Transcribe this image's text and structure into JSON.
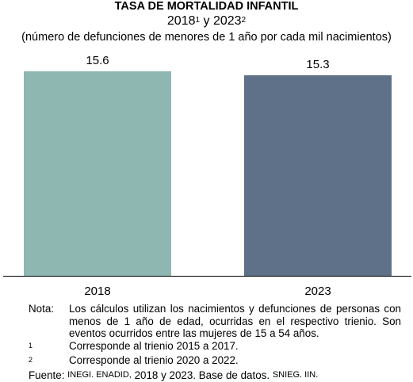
{
  "title": "TASA DE MORTALIDAD INFANTIL",
  "subtitle": {
    "year1": "2018",
    "sup1": "1",
    "connector": "y",
    "year2": "2023",
    "sup2": "2"
  },
  "units": "(número de defunciones de menores de 1 año por cada mil nacimientos)",
  "colors": {
    "bar_2018": "#8db7b0",
    "bar_2023": "#5e7189",
    "baseline": "#000000"
  },
  "chart_data": {
    "type": "bar",
    "categories": [
      "2018",
      "2023"
    ],
    "values": [
      15.6,
      15.3
    ],
    "value_labels": [
      "15.6",
      "15.3"
    ],
    "ylim": [
      0,
      15.6
    ],
    "grid": false,
    "legend": "none"
  },
  "notes": {
    "nota_label": "Nota:",
    "nota_text": "Los cálculos utilizan los nacimientos y defunciones de personas con menos de 1 año de edad, ocurridas en el respectivo trienio. Son eventos ocurridos entre las mujeres de 15 a 54 años.",
    "fn1_marker": "1",
    "fn1_text": "Corresponde al trienio 2015 a 2017.",
    "fn2_marker": "2",
    "fn2_text": "Corresponde al trienio 2020 a 2022.",
    "source_label": "Fuente:",
    "source_org": "INEGI. ENADID,",
    "source_text": "2018 y 2023. Base de datos.",
    "source_credit": "SNIEG. IIN."
  }
}
